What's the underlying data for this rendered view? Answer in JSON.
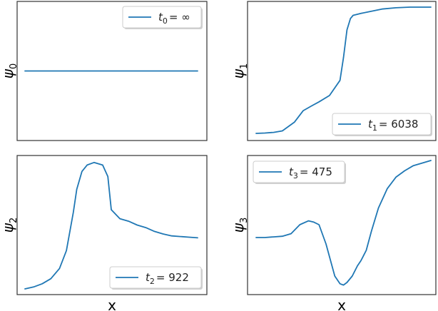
{
  "chart_data": [
    {
      "type": "line",
      "xlabel": "",
      "ylabel": "ψ",
      "ylabel_sub": "0",
      "legend": {
        "var": "t",
        "sub": "0",
        "value": "∞",
        "placement": "upper right"
      },
      "series": [
        {
          "x": [
            0,
            1
          ],
          "y": [
            0.5,
            0.5
          ]
        }
      ],
      "ylim": [
        0,
        1
      ]
    },
    {
      "type": "line",
      "xlabel": "",
      "ylabel": "ψ",
      "ylabel_sub": "1",
      "legend": {
        "var": "t",
        "sub": "1",
        "value": "6038",
        "placement": "lower right"
      },
      "series": [
        {
          "x": [
            0,
            0.05,
            0.1,
            0.15,
            0.22,
            0.27,
            0.32,
            0.36,
            0.42,
            0.48,
            0.5,
            0.52,
            0.54,
            0.555,
            0.57,
            0.6,
            0.65,
            0.72,
            0.8,
            0.88,
            0.95,
            1.0
          ],
          "y": [
            0.0,
            0.003,
            0.008,
            0.02,
            0.09,
            0.18,
            0.22,
            0.25,
            0.3,
            0.42,
            0.6,
            0.82,
            0.91,
            0.935,
            0.94,
            0.95,
            0.965,
            0.985,
            0.995,
            1.0,
            1.0,
            1.0
          ]
        }
      ],
      "ylim": [
        0,
        1
      ]
    },
    {
      "type": "line",
      "xlabel": "x",
      "ylabel": "ψ",
      "ylabel_sub": "2",
      "legend": {
        "var": "t",
        "sub": "2",
        "value": "922",
        "placement": "lower right"
      },
      "series": [
        {
          "x": [
            0,
            0.05,
            0.1,
            0.15,
            0.2,
            0.24,
            0.28,
            0.3,
            0.33,
            0.36,
            0.4,
            0.45,
            0.48,
            0.5,
            0.55,
            0.6,
            0.65,
            0.7,
            0.75,
            0.8,
            0.85,
            0.9,
            0.95,
            1.0
          ],
          "y": [
            0.0,
            0.015,
            0.04,
            0.08,
            0.16,
            0.3,
            0.6,
            0.78,
            0.92,
            0.97,
            0.99,
            0.97,
            0.88,
            0.62,
            0.55,
            0.53,
            0.5,
            0.48,
            0.45,
            0.43,
            0.415,
            0.41,
            0.405,
            0.4
          ]
        }
      ],
      "ylim": [
        0,
        1
      ]
    },
    {
      "type": "line",
      "xlabel": "x",
      "ylabel": "ψ",
      "ylabel_sub": "3",
      "legend": {
        "var": "t",
        "sub": "3",
        "value": "475",
        "placement": "upper left"
      },
      "series": [
        {
          "x": [
            0,
            0.05,
            0.1,
            0.15,
            0.2,
            0.25,
            0.3,
            0.33,
            0.36,
            0.4,
            0.45,
            0.48,
            0.5,
            0.52,
            0.55,
            0.58,
            0.6,
            0.63,
            0.66,
            0.7,
            0.75,
            0.8,
            0.85,
            0.9,
            0.95,
            1.0
          ],
          "y": [
            0.4,
            0.4,
            0.405,
            0.41,
            0.43,
            0.5,
            0.53,
            0.52,
            0.5,
            0.35,
            0.1,
            0.04,
            0.03,
            0.05,
            0.1,
            0.18,
            0.22,
            0.3,
            0.45,
            0.63,
            0.78,
            0.87,
            0.92,
            0.96,
            0.98,
            1.0
          ]
        }
      ],
      "ylim": [
        0,
        1
      ]
    }
  ],
  "colors": {
    "line": "#1f77b4",
    "frame": "#333333",
    "legend_border": "#cccccc"
  }
}
